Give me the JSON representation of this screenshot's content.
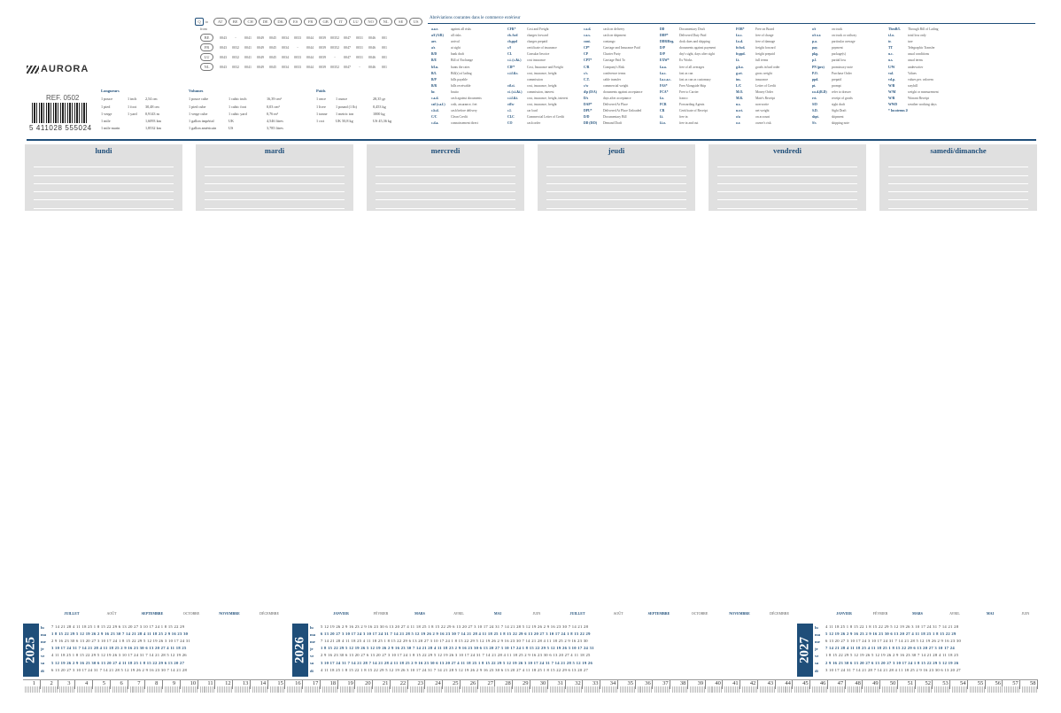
{
  "header": {
    "logo_text": "AURORA",
    "ref": "REF. 0502",
    "barcode_number": "5 411028 555024"
  },
  "countries": {
    "head_label": "to",
    "from_label": "from",
    "selected": "Q",
    "codes": [
      "AT",
      "BE",
      "CH",
      "DE",
      "DK",
      "ES",
      "FR",
      "GB",
      "IT",
      "LU",
      "NO",
      "NL",
      "SE",
      "US"
    ],
    "rows": [
      {
        "code": "BE",
        "cells": [
          "0043",
          "-",
          "0041",
          "0049",
          "0045",
          "0034",
          "0033",
          "0044",
          "0039",
          "00352",
          "0047",
          "0031",
          "0046",
          "001"
        ]
      },
      {
        "code": "FR",
        "cells": [
          "0043",
          "0032",
          "0041",
          "0049",
          "0045",
          "0034",
          "-",
          "0044",
          "0039",
          "00352",
          "0047",
          "0031",
          "0046",
          "001"
        ]
      },
      {
        "code": "LU",
        "cells": [
          "0043",
          "0032",
          "0041",
          "0049",
          "0045",
          "0034",
          "0033",
          "0044",
          "0039",
          "-",
          "0047",
          "0031",
          "0046",
          "001"
        ]
      },
      {
        "code": "NL",
        "cells": [
          "0043",
          "0032",
          "0041",
          "0049",
          "0045",
          "0034",
          "0033",
          "0044",
          "0039",
          "00352",
          "0047",
          "-",
          "0046",
          "001"
        ]
      }
    ]
  },
  "units": {
    "longueurs": {
      "title": "Longueurs",
      "rows": [
        [
          "1 pouce",
          "1 inch",
          "2,54 cm"
        ],
        [
          "1 pied",
          "1 foot",
          "30,48 cm"
        ],
        [
          "1 verge",
          "1 yard",
          "0,9143 m"
        ],
        [
          "1 mile",
          "",
          "1,6093 km"
        ],
        [
          "1 mile marin",
          "",
          "1,8532 km"
        ]
      ]
    },
    "volumes": {
      "title": "Volumes",
      "rows": [
        [
          "1 pouce cube",
          "1 cubic inch",
          "16,39 cm³"
        ],
        [
          "1 pied cube",
          "1 cubic foot",
          "0,03 cm³"
        ],
        [
          "1 verge cube",
          "1 cubic yard",
          "0,76 m³"
        ],
        [
          "1 gallon impérial",
          "UK",
          "4,546 litres"
        ],
        [
          "1 gallon américain",
          "US",
          "3,785 litres"
        ]
      ]
    },
    "poids": {
      "title": "Poids",
      "rows": [
        [
          "1 once",
          "1 ounce",
          "28,35 gr"
        ],
        [
          "1 livre",
          "1 pound (1 lb)",
          "0,453 kg"
        ],
        [
          "1 tonne",
          "1 metric ton",
          "1000 kg"
        ],
        [
          "1 cwt",
          "UK 50,8 kg",
          "US 45,36 kg"
        ]
      ]
    }
  },
  "abbreviations": {
    "title": "Abréviations courantes dans le commerce extérieur",
    "columns": [
      [
        [
          "a.a.r.",
          "against all risks"
        ],
        [
          "a/f (A/R)",
          "all risks"
        ],
        [
          "arr.",
          "arrival"
        ],
        [
          "a/s",
          "at sight"
        ],
        [
          "B/D",
          "bank draft"
        ],
        [
          "B/E",
          "Bill of Exchange"
        ],
        [
          "b/l.n.",
          "bunts the rates"
        ],
        [
          "B/L",
          "Bill(s) of lading"
        ],
        [
          "B/P",
          "bills payable"
        ],
        [
          "B/R",
          "bills receivable"
        ],
        [
          "br.",
          "brutto"
        ],
        [
          "c.a.d.",
          "cash against documents"
        ],
        [
          "caf (c.a.f.)",
          "coût, assurance, fret"
        ],
        [
          "c.b.d.",
          "cash before delivery"
        ],
        [
          "C/C",
          "Clean Credit"
        ],
        [
          "c.d.a.",
          "connaissement direct"
        ]
      ],
      [
        [
          "CFR*",
          "Cost and Freight"
        ],
        [
          "ch. fwd",
          "charges forward"
        ],
        [
          "ch.ppd",
          "charges prepaid"
        ],
        [
          "c/f",
          "certificate of insurance"
        ],
        [
          "CI.",
          "Consular Invoice"
        ],
        [
          "c.i. (c.&i.)",
          "cost insurance"
        ],
        [
          "CIF*",
          "Cost, Insurance and Freight"
        ],
        [
          "c.i.f.&c.",
          "cost, insurance, freight"
        ],
        [
          "",
          "commission"
        ],
        [
          "cif.ci.",
          "cost, insurance, freight"
        ],
        [
          "ci. (c.i.&i.)",
          "commission, interest"
        ],
        [
          "c.i.f.&i.",
          "cost, insurance, freight, interest"
        ],
        [
          "cif/w",
          "cost, insurance, freight"
        ],
        [
          "c.l.",
          "car load"
        ],
        [
          "CLC",
          "Commercial Letter of Credit"
        ],
        [
          "CO",
          "cash order"
        ]
      ],
      [
        [
          "c.o.d.",
          "cash on delivery"
        ],
        [
          "c.o.s.",
          "cash on shipment"
        ],
        [
          "cont.",
          "contango"
        ],
        [
          "CP*",
          "Carriage and Insurance Paid"
        ],
        [
          "CP",
          "Charter Party"
        ],
        [
          "CPT*",
          "Carriage Paid To"
        ],
        [
          "C/R",
          "Company's Risk"
        ],
        [
          "c/c.",
          "conference terms"
        ],
        [
          "C.T.",
          "cable transfer"
        ],
        [
          "c/w",
          "commercial weight"
        ],
        [
          "d/p (D/A)",
          "documents against acceptance"
        ],
        [
          "D/s",
          "days after acceptance"
        ],
        [
          "DAP*",
          "Delivered At Place"
        ],
        [
          "DPU*",
          "Delivered At Place Unloaded"
        ],
        [
          "D/D",
          "Documentary Bill"
        ],
        [
          "DD (D/D)",
          "Demand Draft"
        ]
      ],
      [
        [
          "DD",
          "Documentary Draft"
        ],
        [
          "DDP*",
          "Delivered Duty Paid"
        ],
        [
          "DDR/Reg.",
          "dock dues and shipping"
        ],
        [
          "D/P",
          "documents against payment"
        ],
        [
          "D/P",
          "day's sight, days after sight"
        ],
        [
          "EXW*",
          "Ex Works"
        ],
        [
          "f.a.a.",
          "free of all averages"
        ],
        [
          "f.a.c.",
          "fast as can"
        ],
        [
          "f.a.c.a.c.",
          "fast as can as customary"
        ],
        [
          "FAS*",
          "Free Alongside Ship"
        ],
        [
          "FCA*",
          "Free to Carrier"
        ],
        [
          "f.o.",
          "franco"
        ],
        [
          "FCR",
          "Forwarding Agents"
        ],
        [
          "CR",
          "Certificate of Receipt"
        ],
        [
          "f.i.",
          "free in"
        ],
        [
          "f.i.o.",
          "free in and out"
        ]
      ],
      [
        [
          "FOB*",
          "Free on Board"
        ],
        [
          "f.o.c.",
          "free of charge"
        ],
        [
          "f.o.d.",
          "free of damage"
        ],
        [
          "fr.fwd.",
          "freight forward"
        ],
        [
          "fr.ppd.",
          "freight prepaid"
        ],
        [
          "f.t.",
          "full terms"
        ],
        [
          "g.b.o.",
          "goods in bad order"
        ],
        [
          "g.wt.",
          "gross weight"
        ],
        [
          "ins.",
          "insurance"
        ],
        [
          "L/C",
          "Letter of Credit"
        ],
        [
          "M.O.",
          "Money Order"
        ],
        [
          "M.R.",
          "Mate's Receipt"
        ],
        [
          "n.s.",
          "non-sortie"
        ],
        [
          "n.wt.",
          "net weight"
        ],
        [
          "o/a",
          "on account"
        ],
        [
          "o.r.",
          "owner's risk"
        ]
      ],
      [
        [
          "o/t",
          "on truck"
        ],
        [
          "o/t o.r.",
          "on truck or railway"
        ],
        [
          "p.a.",
          "particular average"
        ],
        [
          "pay.",
          "payment"
        ],
        [
          "pkg.",
          "package(s)"
        ],
        [
          "p.l.",
          "partial loss"
        ],
        [
          "PN (pro)",
          "promissory note"
        ],
        [
          "P.O.",
          "Purchase Order"
        ],
        [
          "ppd.",
          "prepaid"
        ],
        [
          "pt.",
          "prompt"
        ],
        [
          "r.o.d.(R.D)",
          "refer to drawer"
        ],
        [
          "rct.",
          "receipt of goods"
        ],
        [
          "S/D",
          "sight draft"
        ],
        [
          "S.D.",
          "Sight Draft"
        ],
        [
          "shpt.",
          "shipment"
        ],
        [
          "S/s",
          "shipping note"
        ]
      ],
      [
        [
          "ThroB/L",
          "Through Bill of Lading"
        ],
        [
          "t.l.o.",
          "total loss only"
        ],
        [
          "tr.",
          "tare"
        ],
        [
          "TT",
          "Telegraphic Transfer"
        ],
        [
          "u.c.",
          "usual conditions"
        ],
        [
          "u.s.",
          "usual terms"
        ],
        [
          "U/W",
          "underwriter"
        ],
        [
          "val.",
          "Values"
        ],
        [
          "vd.p.",
          "values per. valorem"
        ],
        [
          "W/B",
          "waybill"
        ],
        [
          "W/M",
          "weight or measurement"
        ],
        [
          "W/R",
          "Warrant Receipt"
        ],
        [
          "WWD",
          "weather working days"
        ],
        [
          "* Incoterms 2020",
          ""
        ]
      ]
    ]
  },
  "days": [
    "lundi",
    "mardi",
    "mercredi",
    "jeudi",
    "vendredi",
    "samedi/dimanche"
  ],
  "calendar": {
    "weekday_labels": [
      "lu",
      "ma",
      "me",
      "je",
      "ve",
      "sa",
      "di"
    ],
    "panels": [
      {
        "year": "2025",
        "months": [
          "JUILLET",
          "AOÛT",
          "SEPTEMBRE",
          "OCTOBRE",
          "NOVEMBRE",
          "DÉCEMBRE"
        ],
        "rows": [
          "7 14 21 28  4 11 18 25  1 8 15 22 29  6 13 20 27  3 10 17 24  1 8 15 22 29",
          "1 8 15 22 29  5 12 19 26  2 9 16 23 30  7 14 21 28  4 11 18 25  2 9 16 23 30",
          "2 9 16 23 30  6 13 20 27  3 10 17 24  1 8 15 22 29  5 12 19 26  3 10 17 24 31",
          "3 10 17 24 31  7 14 21 28  4 11 18 25  2 9 16 23 30  6 13 20 27  4 11 18 25",
          "4 11 18 25  1 8 15 22 29  5 12 19 26  3 10 17 24 31  7 14 21 28  5 12 19 26",
          "5 12 19 26  2 9 16 23 30  6 13 20 27  4 11 18 25  1 8 15 22 29  6 13 20 27",
          "6 13 20 27  3 10 17 24 31  7 14 21 28  5 12 19 26  2 9 16 23 30  7 14 21 28"
        ]
      },
      {
        "year": "2026",
        "months": [
          "JANVIER",
          "FÉVRIER",
          "MARS",
          "AVRIL",
          "MAI",
          "JUIN",
          "JUILLET",
          "AOÛT",
          "SEPTEMBRE",
          "OCTOBRE",
          "NOVEMBRE",
          "DÉCEMBRE"
        ],
        "rows": [
          "5 12 19 26  2 9 16 23  2 9 16 23 30  6 13 20 27  4 11 18 25  1 8 15 22 29  6 13 20 27  3 10 17 24 31  7 14 21 28  5 12 19 26  2 9 16 23 30  7 14 21 28",
          "6 13 20 27  3 10 17 24  3 10 17 24 31  7 14 21 28  5 12 19 26  2 9 16 23 30  7 14 21 28  4 11 18 25  1 8 15 22 29  6 13 20 27  3 10 17 24  1 8 15 22 29",
          "7 14 21 28  4 11 18 25  4 11 18 25  1 8 15 22 29  6 13 20 27  3 10 17 24  1 8 15 22 29  5 12 19 26  2 9 16 23 30  7 14 21 28  4 11 18 25  2 9 16 23 30",
          "1 8 15 22 29  5 12 19 26  5 12 19 26  2 9 16 23 30  7 14 21 28  4 11 18 25  2 9 16 23 30  6 13 20 27  3 10 17 24  1 8 15 22 29  5 12 19 26  3 10 17 24 31",
          "2 9 16 23 30  6 13 20 27  6 13 20 27  3 10 17 24  1 8 15 22 29  5 12 19 26  3 10 17 24 31  7 14 21 28  4 11 18 25  2 9 16 23 30  6 13 20 27  4 11 18 25",
          "3 10 17 24 31  7 14 21 28  7 14 21 28  4 11 18 25  2 9 16 23 30  6 13 20 27  4 11 18 25  1 8 15 22 29  5 12 19 26  3 10 17 24 31  7 14 21 28  5 12 19 26",
          "4 11 18 25  1 8 15 22  1 8 15 22 29  5 12 19 26  3 10 17 24 31  7 14 21 28  5 12 19 26  2 9 16 23 30  6 13 20 27  4 11 18 25  1 8 15 22 29  6 13 20 27"
        ]
      },
      {
        "year": "2027",
        "months": [
          "JANVIER",
          "FÉVRIER",
          "MARS",
          "AVRIL",
          "MAI",
          "JUIN"
        ],
        "rows": [
          "4 11 18 25  1 8 15 22  1 8 15 22 29  5 12 19 26  3 10 17 24 31  7 14 21 28",
          "5 12 19 26  2 9 16 23  2 9 16 23 30  6 13 20 27  4 11 18 25  1 8 15 22 29",
          "6 13 20 27  3 10 17 24  3 10 17 24 31  7 14 21 28  5 12 19 26  2 9 16 23 30",
          "7 14 21 28  4 11 18 25  4 11 18 25  1 8 15 22 29  6 13 20 27  3 10 17 24",
          "1 8 15 22 29  5 12 19 26  5 12 19 26  2 9 16 23 30  7 14 21 28  4 11 18 25",
          "2 9 16 23 30  6 13 20 27  6 13 20 27  3 10 17 24  1 8 15 22 29  5 12 19 26",
          "3 10 17 24 31  7 14 21 28  7 14 21 28  4 11 18 25  2 9 16 23 30  6 13 20 27"
        ]
      }
    ]
  },
  "ruler": {
    "labels": [
      "1",
      "2",
      "3",
      "4",
      "5",
      "6",
      "7",
      "8",
      "9",
      "10",
      "11",
      "12",
      "13",
      "14",
      "15",
      "16",
      "17",
      "18",
      "19",
      "20",
      "21",
      "22",
      "23",
      "24",
      "25",
      "26",
      "27",
      "28",
      "29",
      "30",
      "31",
      "32",
      "33",
      "34",
      "35",
      "36",
      "37",
      "38",
      "39",
      "40",
      "41",
      "42",
      "43",
      "44",
      "45",
      "46",
      "47",
      "48",
      "49",
      "50",
      "51",
      "52",
      "53",
      "54",
      "55",
      "56",
      "57",
      "58"
    ]
  },
  "colors": {
    "accent": "#1f4e79",
    "box": "#e0e0e0"
  }
}
